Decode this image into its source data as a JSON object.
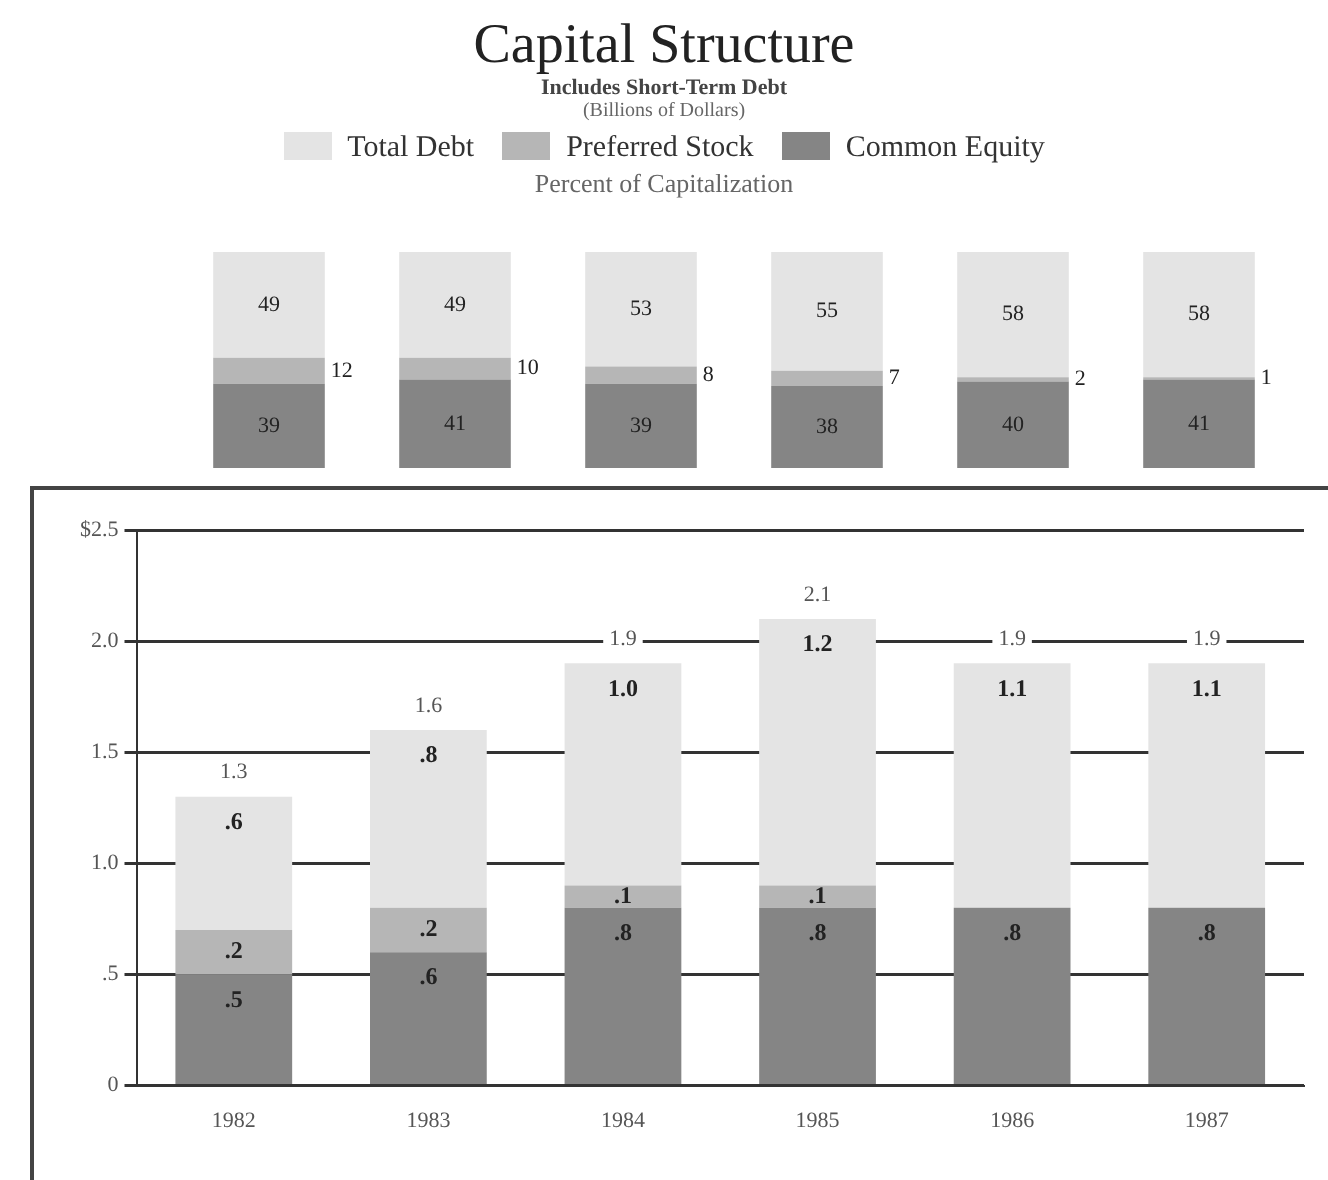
{
  "chart_data": [
    {
      "type": "bar",
      "stacked": true,
      "title": "Capital Structure",
      "subtitle": "Includes Short-Term Debt",
      "annotations": [
        "(Billions of Dollars)",
        "Percent of Capitalization"
      ],
      "categories": [
        null,
        null,
        null,
        null,
        null,
        null
      ],
      "legend": "top",
      "data_labels": true,
      "ylim": [
        0,
        100
      ],
      "series": [
        {
          "name": "Common Equity",
          "color": "#858585",
          "values": [
            39,
            41,
            39,
            38,
            40,
            41
          ]
        },
        {
          "name": "Preferred Stock",
          "color": "#b6b6b6",
          "values": [
            12,
            10,
            8,
            7,
            2,
            1
          ]
        },
        {
          "name": "Total Debt",
          "color": "#e4e4e4",
          "values": [
            49,
            49,
            53,
            55,
            58,
            58
          ]
        }
      ]
    },
    {
      "type": "bar",
      "stacked": true,
      "categories": [
        "1982",
        "1983",
        "1984",
        "1985",
        "1986",
        "1987"
      ],
      "ylim": [
        0,
        2.5
      ],
      "yticks": [
        {
          "value": 0,
          "label": "0"
        },
        {
          "value": 0.5,
          "label": ".5"
        },
        {
          "value": 1,
          "label": "1.0"
        },
        {
          "value": 1.5,
          "label": "1.5"
        },
        {
          "value": 2,
          "label": "2.0"
        },
        {
          "value": 2.5,
          "label": "$2.5"
        }
      ],
      "grid": "y",
      "legend": false,
      "totals": [
        "1.3",
        "1.6",
        "1.9",
        "2.1",
        "1.9",
        "1.9"
      ],
      "series": [
        {
          "color": "#858585",
          "values": [
            0.5,
            0.6,
            0.8,
            0.8,
            0.8,
            0.8
          ],
          "value_labels": [
            ".5",
            ".6",
            ".8",
            ".8",
            ".8",
            ".8"
          ]
        },
        {
          "color": "#b6b6b6",
          "values": [
            0.2,
            0.2,
            0.1,
            0.1,
            null,
            null
          ],
          "value_labels": [
            ".2",
            ".2",
            ".1",
            ".1",
            null,
            null
          ]
        },
        {
          "color": "#e4e4e4",
          "values": [
            0.6,
            0.8,
            1.0,
            1.2,
            1.1,
            1.1
          ],
          "value_labels": [
            ".6",
            ".8",
            "1.0",
            "1.2",
            "1.1",
            "1.1"
          ]
        }
      ]
    }
  ]
}
